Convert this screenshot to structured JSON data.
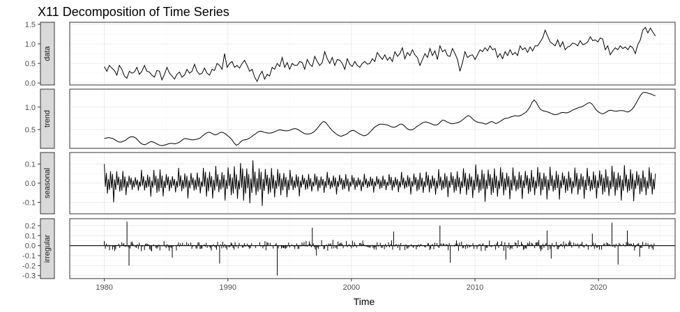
{
  "chart_data": {
    "type": "line",
    "title": "X11 Decomposition of Time Series",
    "xlabel": "Time",
    "xlim": [
      1977.2,
      2026.2
    ],
    "x_ticks": [
      1980,
      1990,
      2000,
      2010,
      2020
    ],
    "x_start": 1980.0,
    "x_step": 0.25,
    "grid": true,
    "panels": [
      {
        "name": "data",
        "type": "line",
        "ylim": [
          -0.05,
          1.55
        ],
        "y_ticks": [
          0.0,
          0.5,
          1.0,
          1.5
        ],
        "y_tick_labels": [
          "0.0",
          "0.5",
          "1.0",
          "1.5"
        ],
        "values": [
          0.42,
          0.3,
          0.45,
          0.38,
          0.32,
          0.2,
          0.45,
          0.35,
          0.18,
          0.12,
          0.3,
          0.25,
          0.28,
          0.4,
          0.22,
          0.3,
          0.45,
          0.3,
          0.28,
          0.2,
          0.15,
          0.32,
          0.3,
          0.08,
          0.22,
          0.4,
          0.25,
          0.18,
          0.1,
          0.22,
          0.28,
          0.15,
          0.2,
          0.35,
          0.25,
          0.3,
          0.48,
          0.3,
          0.22,
          0.25,
          0.38,
          0.25,
          0.2,
          0.35,
          0.32,
          0.5,
          0.45,
          0.35,
          0.75,
          0.4,
          0.5,
          0.55,
          0.4,
          0.45,
          0.38,
          0.5,
          0.58,
          0.45,
          0.3,
          0.35,
          0.15,
          0.04,
          0.2,
          0.3,
          0.1,
          0.22,
          0.18,
          0.4,
          0.35,
          0.5,
          0.42,
          0.65,
          0.4,
          0.52,
          0.35,
          0.5,
          0.45,
          0.45,
          0.55,
          0.52,
          0.35,
          0.6,
          0.48,
          0.42,
          0.68,
          0.55,
          0.45,
          0.52,
          0.8,
          0.62,
          0.5,
          0.65,
          0.45,
          0.6,
          0.58,
          0.5,
          0.35,
          0.62,
          0.48,
          0.42,
          0.55,
          0.45,
          0.4,
          0.5,
          0.55,
          0.48,
          0.5,
          0.62,
          0.55,
          0.78,
          0.68,
          0.6,
          0.72,
          0.58,
          0.66,
          0.55,
          0.8,
          0.68,
          0.75,
          0.9,
          0.62,
          0.78,
          0.7,
          0.85,
          0.72,
          0.65,
          0.45,
          0.6,
          0.75,
          0.65,
          0.88,
          0.7,
          0.82,
          0.6,
          0.95,
          0.8,
          0.85,
          0.7,
          0.68,
          0.88,
          0.75,
          0.6,
          0.3,
          0.52,
          0.8,
          0.65,
          0.7,
          0.72,
          0.6,
          0.72,
          0.85,
          0.8,
          0.9,
          0.82,
          0.95,
          0.85,
          0.88,
          0.65,
          0.75,
          0.62,
          0.8,
          0.7,
          0.85,
          0.72,
          0.78,
          0.7,
          0.95,
          0.85,
          0.9,
          0.78,
          0.92,
          0.82,
          0.95,
          0.95,
          1.05,
          1.15,
          1.35,
          1.2,
          1.05,
          1.0,
          0.95,
          1.1,
          0.92,
          1.05,
          0.85,
          0.92,
          0.95,
          1.02,
          1.0,
          0.95,
          1.08,
          0.98,
          1.0,
          1.05,
          1.18,
          1.08,
          1.1,
          1.05,
          1.15,
          1.12,
          0.85,
          0.95,
          0.72,
          0.82,
          0.9,
          0.85,
          0.95,
          0.88,
          0.92,
          0.85,
          0.95,
          0.9,
          0.75,
          0.98,
          1.1,
          1.35,
          1.42,
          1.28,
          1.4,
          1.3,
          1.2
        ]
      },
      {
        "name": "trend",
        "type": "line",
        "ylim": [
          0.08,
          1.4
        ],
        "y_ticks": [
          0.5,
          1.0
        ],
        "y_tick_labels": [
          "0.5",
          "1.0"
        ],
        "values": [
          0.3,
          0.31,
          0.32,
          0.31,
          0.3,
          0.27,
          0.24,
          0.22,
          0.22,
          0.24,
          0.26,
          0.3,
          0.33,
          0.34,
          0.33,
          0.3,
          0.25,
          0.2,
          0.17,
          0.16,
          0.18,
          0.21,
          0.23,
          0.22,
          0.2,
          0.17,
          0.15,
          0.14,
          0.15,
          0.16,
          0.18,
          0.19,
          0.19,
          0.18,
          0.19,
          0.21,
          0.24,
          0.28,
          0.3,
          0.29,
          0.28,
          0.27,
          0.27,
          0.28,
          0.29,
          0.31,
          0.35,
          0.39,
          0.42,
          0.44,
          0.43,
          0.4,
          0.38,
          0.39,
          0.42,
          0.44,
          0.43,
          0.4,
          0.36,
          0.32,
          0.27,
          0.2,
          0.15,
          0.17,
          0.22,
          0.26,
          0.27,
          0.28,
          0.3,
          0.33,
          0.37,
          0.4,
          0.44,
          0.46,
          0.46,
          0.44,
          0.43,
          0.42,
          0.42,
          0.43,
          0.45,
          0.47,
          0.49,
          0.49,
          0.48,
          0.47,
          0.47,
          0.48,
          0.5,
          0.52,
          0.52,
          0.5,
          0.47,
          0.44,
          0.41,
          0.4,
          0.4,
          0.41,
          0.43,
          0.47,
          0.52,
          0.58,
          0.64,
          0.68,
          0.66,
          0.6,
          0.54,
          0.48,
          0.44,
          0.4,
          0.37,
          0.35,
          0.36,
          0.38,
          0.4,
          0.44,
          0.47,
          0.48,
          0.46,
          0.43,
          0.4,
          0.38,
          0.36,
          0.37,
          0.4,
          0.45,
          0.5,
          0.55,
          0.58,
          0.61,
          0.62,
          0.62,
          0.61,
          0.6,
          0.58,
          0.56,
          0.55,
          0.56,
          0.59,
          0.62,
          0.62,
          0.58,
          0.53,
          0.5,
          0.49,
          0.5,
          0.53,
          0.57,
          0.6,
          0.63,
          0.66,
          0.67,
          0.66,
          0.64,
          0.62,
          0.6,
          0.6,
          0.62,
          0.67,
          0.71,
          0.7,
          0.67,
          0.65,
          0.63,
          0.63,
          0.64,
          0.65,
          0.67,
          0.7,
          0.74,
          0.78,
          0.81,
          0.79,
          0.74,
          0.7,
          0.67,
          0.66,
          0.65,
          0.64,
          0.62,
          0.63,
          0.66,
          0.68,
          0.66,
          0.63,
          0.65,
          0.68,
          0.71,
          0.74,
          0.75,
          0.76,
          0.78,
          0.79,
          0.81,
          0.8,
          0.8,
          0.82,
          0.85,
          0.88,
          0.93,
          1.0,
          1.1,
          1.16,
          1.11,
          1.02,
          0.95,
          0.92,
          0.91,
          0.9,
          0.88,
          0.86,
          0.84,
          0.83,
          0.84,
          0.86,
          0.88,
          0.88,
          0.87,
          0.88,
          0.9,
          0.93,
          0.95,
          0.97,
          0.99,
          1.0,
          1.02,
          1.05,
          1.08,
          1.1,
          1.08,
          1.02,
          0.95,
          0.9,
          0.87,
          0.85,
          0.86,
          0.89,
          0.92,
          0.93,
          0.92,
          0.91,
          0.91,
          0.92,
          0.92,
          0.92,
          0.9,
          0.89,
          0.91,
          0.95,
          1.01,
          1.09,
          1.18,
          1.26,
          1.32,
          1.33,
          1.32,
          1.3,
          1.29,
          1.27,
          1.25
        ]
      },
      {
        "name": "seasonal",
        "type": "line",
        "ylim": [
          -0.16,
          0.16
        ],
        "y_ticks": [
          -0.1,
          0.0,
          0.1
        ],
        "y_tick_labels": [
          "-0.1",
          "0.0",
          "0.1"
        ],
        "amplitude": [
          0.1,
          0.08,
          0.05,
          0.07,
          0.09,
          0.06,
          0.08,
          0.07,
          0.1,
          0.09,
          0.11,
          0.13,
          0.12,
          0.1,
          0.09,
          0.07,
          0.06,
          0.06,
          0.06,
          0.06,
          0.05,
          0.05,
          0.05,
          0.055,
          0.06,
          0.07,
          0.07,
          0.075,
          0.08,
          0.09,
          0.1,
          0.1,
          0.095,
          0.085,
          0.09,
          0.095,
          0.09,
          0.08,
          0.09,
          0.085,
          0.095,
          0.1,
          0.1,
          0.09,
          0.09,
          0.08,
          0.08,
          0.085
        ]
      },
      {
        "name": "irregular",
        "type": "bar",
        "ylim": [
          -0.33,
          0.27
        ],
        "y_ticks": [
          -0.3,
          -0.2,
          -0.1,
          0.0,
          0.1,
          0.2
        ],
        "y_tick_labels": [
          "-0.3",
          "-0.2",
          "-0.1",
          "0.0",
          "0.1",
          "0.2"
        ],
        "spike_scale": 0.045,
        "notable": [
          {
            "x": 1981.8,
            "y": 0.24
          },
          {
            "x": 1982.0,
            "y": -0.2
          },
          {
            "x": 1985.5,
            "y": -0.12
          },
          {
            "x": 1989.3,
            "y": -0.18
          },
          {
            "x": 1994.0,
            "y": -0.3
          },
          {
            "x": 1996.8,
            "y": 0.18
          },
          {
            "x": 1997.2,
            "y": -0.1
          },
          {
            "x": 2003.4,
            "y": 0.14
          },
          {
            "x": 2007.2,
            "y": 0.2
          },
          {
            "x": 2008.0,
            "y": -0.17
          },
          {
            "x": 2012.5,
            "y": -0.14
          },
          {
            "x": 2015.8,
            "y": 0.15
          },
          {
            "x": 2016.2,
            "y": -0.13
          },
          {
            "x": 2019.5,
            "y": 0.12
          },
          {
            "x": 2021.1,
            "y": 0.23
          },
          {
            "x": 2021.6,
            "y": -0.19
          },
          {
            "x": 2022.3,
            "y": 0.15
          },
          {
            "x": 2023.3,
            "y": -0.11
          }
        ]
      }
    ]
  }
}
